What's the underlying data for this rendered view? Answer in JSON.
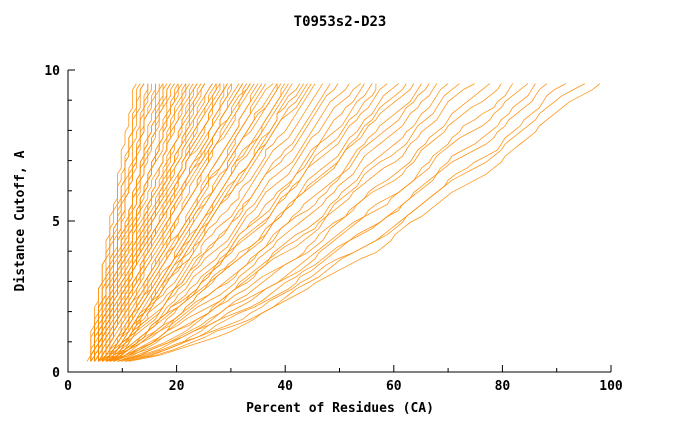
{
  "page": {
    "background": "#ffffff"
  },
  "chart_data": {
    "type": "line",
    "title": "T0953s2-D23",
    "xlabel": "Percent of Residues (CA)",
    "ylabel": "Distance Cutoff, A",
    "xlim": [
      0,
      100
    ],
    "ylim": [
      0,
      10
    ],
    "x_ticks": [
      0,
      20,
      40,
      60,
      80,
      100
    ],
    "x_minor_ticks": [
      10,
      30,
      50,
      70,
      90
    ],
    "y_ticks": [
      0,
      5,
      10
    ],
    "y_minor_ticks": [
      1,
      2,
      3,
      4,
      6,
      7,
      8,
      9
    ],
    "grid": false,
    "legend": null,
    "line_color": "#ff8c00",
    "axis_color": "#000000",
    "series_count": 88,
    "curve_format": [
      "x_percent_at_bottom",
      "x_percent_at_top",
      "shape_exponent",
      "phase"
    ],
    "curves": [
      [
        3.6,
        12.5,
        1.05,
        0.3
      ],
      [
        4.3,
        13.2,
        0.95,
        1.1
      ],
      [
        4.1,
        14.0,
        1.1,
        2.0
      ],
      [
        4.6,
        14.8,
        0.9,
        2.9
      ],
      [
        4.2,
        15.5,
        1.0,
        3.7
      ],
      [
        4.8,
        16.2,
        1.15,
        4.5
      ],
      [
        4.4,
        16.9,
        0.92,
        5.3
      ],
      [
        5.0,
        17.5,
        1.05,
        0.7
      ],
      [
        4.5,
        18.2,
        0.98,
        1.6
      ],
      [
        5.2,
        18.9,
        1.1,
        2.4
      ],
      [
        4.7,
        19.6,
        0.94,
        3.2
      ],
      [
        5.4,
        20.3,
        1.02,
        4.0
      ],
      [
        4.9,
        21.0,
        1.12,
        4.8
      ],
      [
        5.6,
        21.8,
        0.96,
        5.6
      ],
      [
        5.1,
        22.5,
        1.04,
        0.2
      ],
      [
        5.8,
        23.2,
        0.9,
        1.0
      ],
      [
        5.3,
        24.0,
        1.08,
        1.8
      ],
      [
        6.0,
        24.8,
        0.97,
        2.6
      ],
      [
        5.5,
        25.5,
        1.03,
        3.4
      ],
      [
        6.2,
        26.3,
        1.09,
        4.2
      ],
      [
        5.7,
        27.0,
        0.93,
        5.0
      ],
      [
        6.4,
        27.8,
        1.06,
        5.8
      ],
      [
        5.9,
        28.5,
        0.99,
        0.5
      ],
      [
        6.6,
        29.3,
        1.11,
        1.3
      ],
      [
        6.1,
        30.0,
        0.95,
        2.1
      ],
      [
        4.0,
        13.8,
        1.2,
        3.9
      ],
      [
        4.5,
        15.0,
        1.18,
        4.7
      ],
      [
        4.2,
        16.5,
        1.22,
        5.5
      ],
      [
        4.9,
        18.0,
        1.16,
        0.9
      ],
      [
        4.4,
        19.2,
        1.24,
        1.7
      ],
      [
        5.1,
        20.8,
        1.14,
        2.5
      ],
      [
        4.6,
        22.0,
        1.2,
        3.3
      ],
      [
        5.3,
        23.6,
        1.26,
        4.1
      ],
      [
        4.8,
        25.0,
        1.15,
        4.9
      ],
      [
        5.5,
        26.6,
        1.21,
        5.7
      ],
      [
        5.0,
        28.0,
        1.17,
        0.2
      ],
      [
        5.7,
        29.5,
        1.23,
        1.0
      ],
      [
        5.2,
        31.0,
        1.19,
        1.8
      ],
      [
        5.9,
        32.5,
        1.13,
        2.6
      ],
      [
        5.4,
        34.0,
        1.25,
        3.4
      ],
      [
        6.3,
        30.8,
        1.04,
        2.9
      ],
      [
        6.8,
        31.5,
        0.91,
        3.7
      ],
      [
        6.5,
        32.3,
        1.07,
        4.5
      ],
      [
        7.0,
        33.0,
        0.98,
        5.3
      ],
      [
        6.7,
        33.8,
        1.02,
        0.1
      ],
      [
        7.2,
        34.5,
        1.1,
        0.9
      ],
      [
        6.9,
        35.3,
        0.94,
        1.7
      ],
      [
        7.4,
        36.0,
        1.05,
        2.5
      ],
      [
        7.1,
        36.8,
        0.97,
        3.3
      ],
      [
        7.6,
        37.5,
        1.08,
        4.1
      ],
      [
        7.3,
        38.3,
        0.92,
        4.9
      ],
      [
        7.8,
        39.0,
        1.03,
        5.7
      ],
      [
        7.5,
        39.8,
        1.09,
        0.4
      ],
      [
        8.0,
        40.5,
        0.96,
        1.2
      ],
      [
        7.7,
        41.3,
        1.01,
        2.0
      ],
      [
        8.2,
        42.0,
        1.06,
        2.8
      ],
      [
        7.9,
        42.8,
        0.93,
        3.6
      ],
      [
        8.4,
        43.5,
        1.04,
        4.4
      ],
      [
        8.1,
        44.3,
        0.98,
        5.2
      ],
      [
        8.6,
        45.0,
        1.07,
        6.0
      ],
      [
        5.0,
        46.0,
        0.85,
        0.6
      ],
      [
        6.5,
        47.5,
        0.88,
        1.4
      ],
      [
        5.5,
        49.0,
        0.82,
        2.2
      ],
      [
        7.0,
        50.5,
        0.9,
        3.0
      ],
      [
        6.0,
        52.0,
        0.84,
        3.8
      ],
      [
        7.5,
        53.5,
        0.87,
        4.6
      ],
      [
        6.3,
        55.0,
        0.8,
        5.4
      ],
      [
        7.8,
        56.5,
        0.86,
        0.8
      ],
      [
        6.8,
        58.0,
        0.83,
        1.6
      ],
      [
        8.0,
        59.5,
        0.89,
        2.4
      ],
      [
        7.2,
        61.0,
        0.81,
        3.2
      ],
      [
        8.5,
        62.5,
        0.85,
        4.0
      ],
      [
        7.6,
        64.0,
        0.88,
        4.8
      ],
      [
        8.8,
        65.5,
        0.82,
        5.6
      ],
      [
        6.0,
        67.0,
        0.78,
        0.3
      ],
      [
        8.0,
        69.0,
        0.8,
        1.1
      ],
      [
        7.0,
        71.0,
        0.75,
        1.9
      ],
      [
        9.0,
        73.0,
        0.79,
        2.7
      ],
      [
        7.5,
        75.0,
        0.77,
        3.5
      ],
      [
        9.5,
        77.5,
        0.74,
        4.3
      ],
      [
        8.0,
        80.0,
        0.78,
        5.1
      ],
      [
        10.0,
        82.5,
        0.73,
        5.9
      ],
      [
        8.5,
        85.0,
        0.76,
        0.6
      ],
      [
        10.5,
        87.5,
        0.72,
        1.4
      ],
      [
        9.0,
        90.0,
        0.75,
        2.2
      ],
      [
        11.0,
        92.5,
        0.7,
        3.0
      ],
      [
        9.5,
        95.0,
        0.73,
        3.8
      ],
      [
        11.5,
        97.5,
        0.71,
        4.6
      ]
    ]
  }
}
